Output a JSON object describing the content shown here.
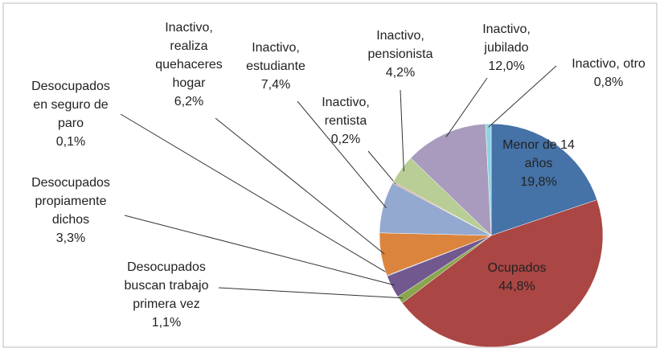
{
  "chart_data": {
    "type": "pie",
    "categories": [
      "Menor de 14 años",
      "Ocupados",
      "Desocupados buscan trabajo primera vez",
      "Desocupados propiamente dichos",
      "Desocupados en seguro de paro",
      "Inactivo, realiza quehaceres hogar",
      "Inactivo, estudiante",
      "Inactivo, rentista",
      "Inactivo, pensionista",
      "Inactivo, jubilado",
      "Inactivo, otro"
    ],
    "values": [
      19.8,
      44.8,
      1.1,
      3.3,
      0.1,
      6.2,
      7.4,
      0.2,
      4.2,
      12.0,
      0.8
    ],
    "value_labels": [
      "19,8%",
      "44,8%",
      "1,1%",
      "3,3%",
      "0,1%",
      "6,2%",
      "7,4%",
      "0,2%",
      "4,2%",
      "12,0%",
      "0,8%"
    ],
    "colors": [
      "#4572a7",
      "#aa4643",
      "#89a54e",
      "#71588f",
      "#4198af",
      "#db843d",
      "#93a9cf",
      "#d19392",
      "#b9cd96",
      "#a99bbd",
      "#8fd3e4"
    ]
  }
}
